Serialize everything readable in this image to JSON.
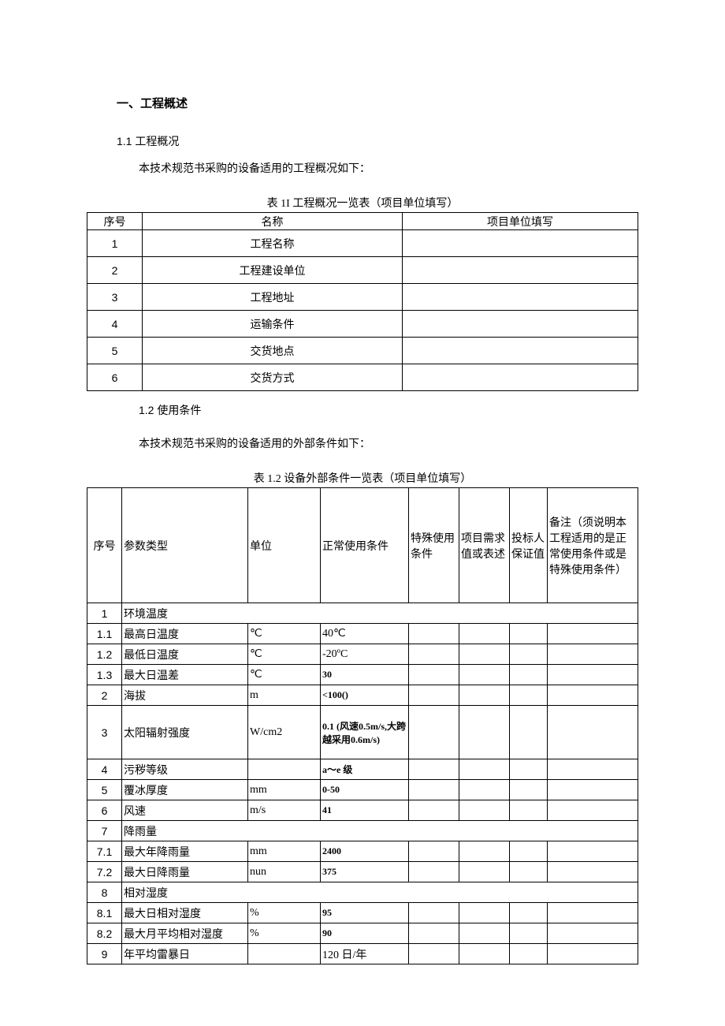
{
  "headings": {
    "h1": "一、工程概述",
    "s1_1": "1.1 工程概况",
    "s1_2": "1.2 使用条件"
  },
  "body": {
    "p1": "本技术规范书采购的设备适用的工程概况如下：",
    "p2": "本技术规范书采购的设备适用的外部条件如下："
  },
  "table1": {
    "caption": "表 1I 工程概况一览表（项目单位填写）",
    "headers": [
      "序号",
      "名称",
      "项目单位填写"
    ],
    "rows": [
      {
        "n": "1",
        "name": "工程名称",
        "fill": ""
      },
      {
        "n": "2",
        "name": "工程建设单位",
        "fill": ""
      },
      {
        "n": "3",
        "name": "工程地址",
        "fill": ""
      },
      {
        "n": "4",
        "name": "运输条件",
        "fill": ""
      },
      {
        "n": "5",
        "name": "交货地点",
        "fill": ""
      },
      {
        "n": "6",
        "name": "交货方式",
        "fill": ""
      }
    ]
  },
  "table2": {
    "caption": "表 1.2 设备外部条件一览表（项目单位填写）",
    "headers": {
      "c1": "序号",
      "c2": "参数类型",
      "c3": "单位",
      "c4": "正常使用条件",
      "c5": "特殊使用条件",
      "c6": "项目需求值或表述",
      "c7": "投标人保证值",
      "c8": "备注（须说明本工程适用的是正常使用条件或是特殊使用条件）"
    },
    "rows": [
      {
        "n": "1",
        "param": "环境温度",
        "span": true
      },
      {
        "n": "1.1",
        "param": "最高日温度",
        "unit": "℃",
        "normal": "40℃"
      },
      {
        "n": "1.2",
        "param": "最低日温度",
        "unit": "℃",
        "normal": "-20ºC"
      },
      {
        "n": "1.3",
        "param": "最大日温差",
        "unit": "℃",
        "normal": "30",
        "bold": true
      },
      {
        "n": "2",
        "param": "海拔",
        "unit": "m",
        "normal": "<100()",
        "bold": true
      },
      {
        "n": "3",
        "param": "太阳辐射强度",
        "unit": "W/cm2",
        "normal": "0.1 (风速0.5m/s,大跨越采用0.6m/s)",
        "bold": true,
        "tall": true
      },
      {
        "n": "4",
        "param": "污秽等级",
        "unit": "",
        "normal": "a～e 级",
        "bold": true
      },
      {
        "n": "5",
        "param": "覆冰厚度",
        "unit": "mm",
        "normal": "0-50",
        "bold": true
      },
      {
        "n": "6",
        "param": "风速",
        "unit": "m/s",
        "normal": "41",
        "bold": true
      },
      {
        "n": "7",
        "param": "降雨量",
        "span": true
      },
      {
        "n": "7.1",
        "param": "最大年降雨量",
        "unit": "mm",
        "normal": "2400",
        "bold": true
      },
      {
        "n": "7.2",
        "param": "最大日降雨量",
        "unit": "nun",
        "normal": "375",
        "bold": true
      },
      {
        "n": "8",
        "param": "相对湿度",
        "span": true
      },
      {
        "n": "8.1",
        "param": "最大日相对湿度",
        "unit": "%",
        "normal": "95",
        "bold": true
      },
      {
        "n": "8.2",
        "param": "最大月平均相对湿度",
        "unit": "%",
        "normal": "90",
        "bold": true
      },
      {
        "n": "9",
        "param": "年平均雷暴日",
        "unit": "",
        "normal": "120 日/年"
      }
    ]
  }
}
